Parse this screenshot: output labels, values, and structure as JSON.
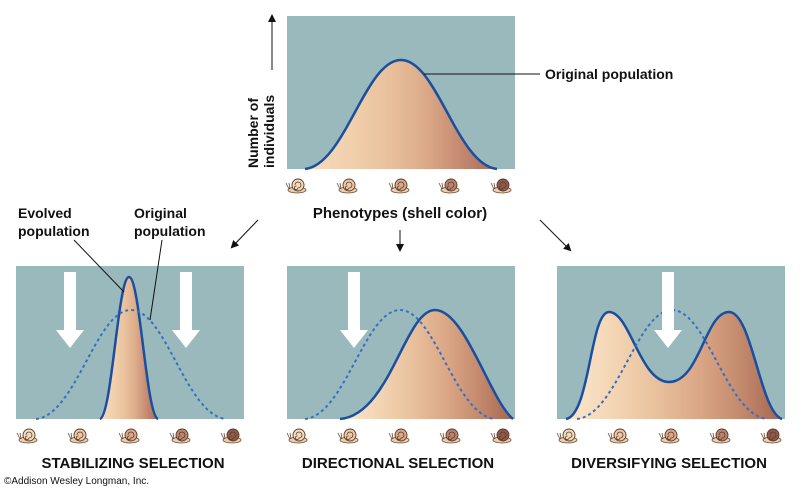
{
  "top": {
    "yaxis_label_line1": "Number of",
    "yaxis_label_line2": "individuals",
    "curve_label": "Original population",
    "xaxis_label": "Phenotypes (shell color)"
  },
  "panels": [
    {
      "id": "stabilizing",
      "title": "STABILIZING SELECTION",
      "evolved_label_line1": "Evolved",
      "evolved_label_line2": "population",
      "original_label_line1": "Original",
      "original_label_line2": "population"
    },
    {
      "id": "directional",
      "title": "DIRECTIONAL SELECTION"
    },
    {
      "id": "diversifying",
      "title": "DIVERSIFYING SELECTION"
    }
  ],
  "copyright": "©Addison Wesley Longman, Inc.",
  "colors": {
    "panel_bg": "#9ab9bd",
    "curve": "#1a4fa0",
    "arrow": "#ffffff"
  },
  "icons": [
    "snail-icon",
    "down-arrow-icon",
    "diagonal-arrow-icon"
  ]
}
